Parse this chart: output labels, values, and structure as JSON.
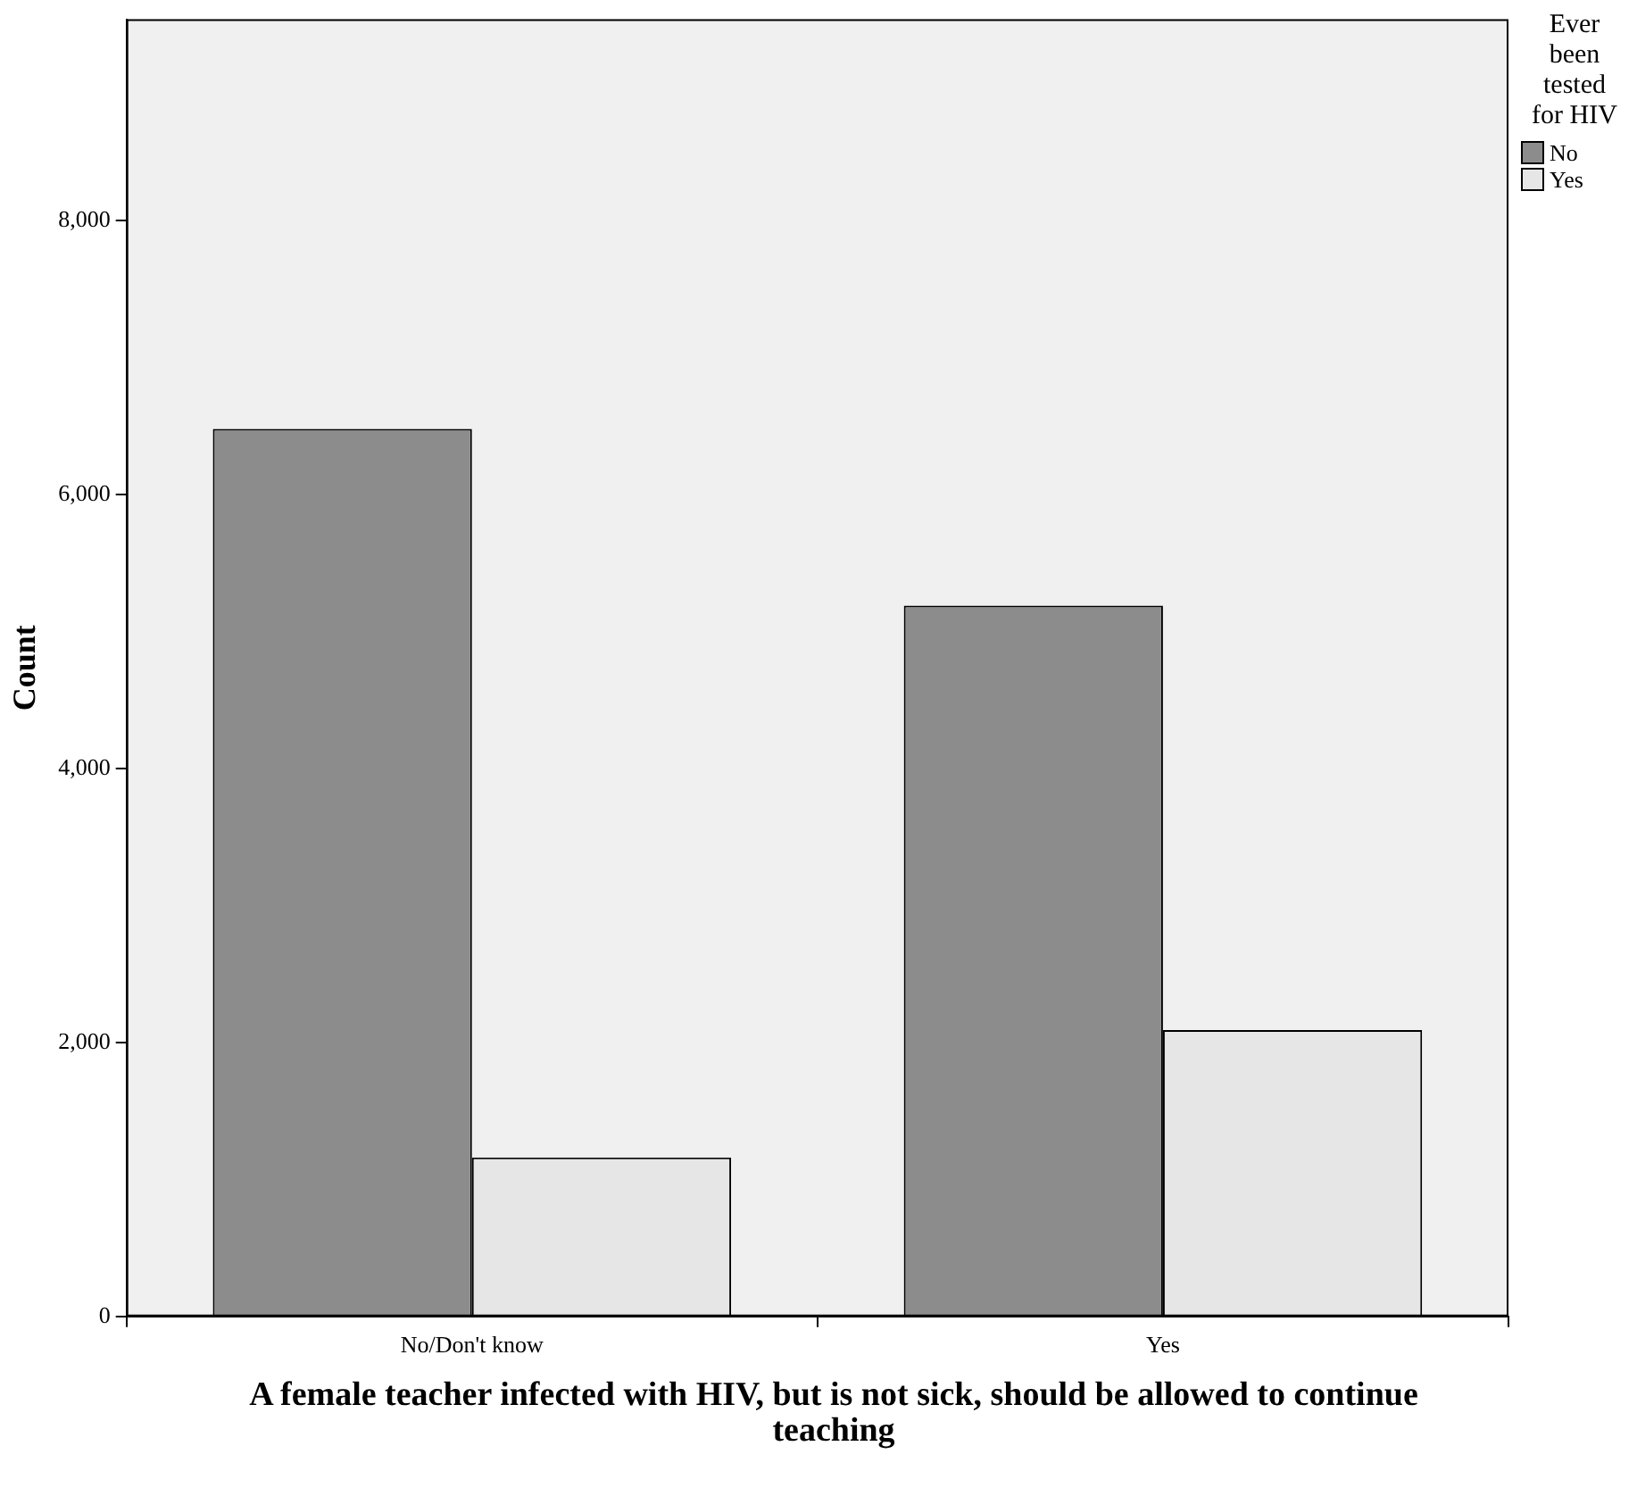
{
  "chart_data": {
    "type": "bar",
    "xlabel": "A female teacher infected with HIV, but is not sick, should be allowed to continue teaching",
    "ylabel": "Count",
    "legend_title": "Ever been tested for HIV",
    "categories": [
      "No/Don't know",
      "Yes"
    ],
    "series": [
      {
        "name": "No",
        "color": "#8c8c8c",
        "values": [
          6480,
          5190
        ]
      },
      {
        "name": "Yes",
        "color": "#e6e6e6",
        "values": [
          1160,
          2090
        ]
      }
    ],
    "ylim": [
      0,
      9470
    ],
    "yticks": [
      0,
      {
        "value": 2000,
        "label": "2,000"
      },
      {
        "value": 4000,
        "label": "4,000"
      },
      {
        "value": 6000,
        "label": "6,000"
      },
      {
        "value": 8000,
        "label": "8,000"
      }
    ],
    "grid": false,
    "legend": "top right"
  }
}
